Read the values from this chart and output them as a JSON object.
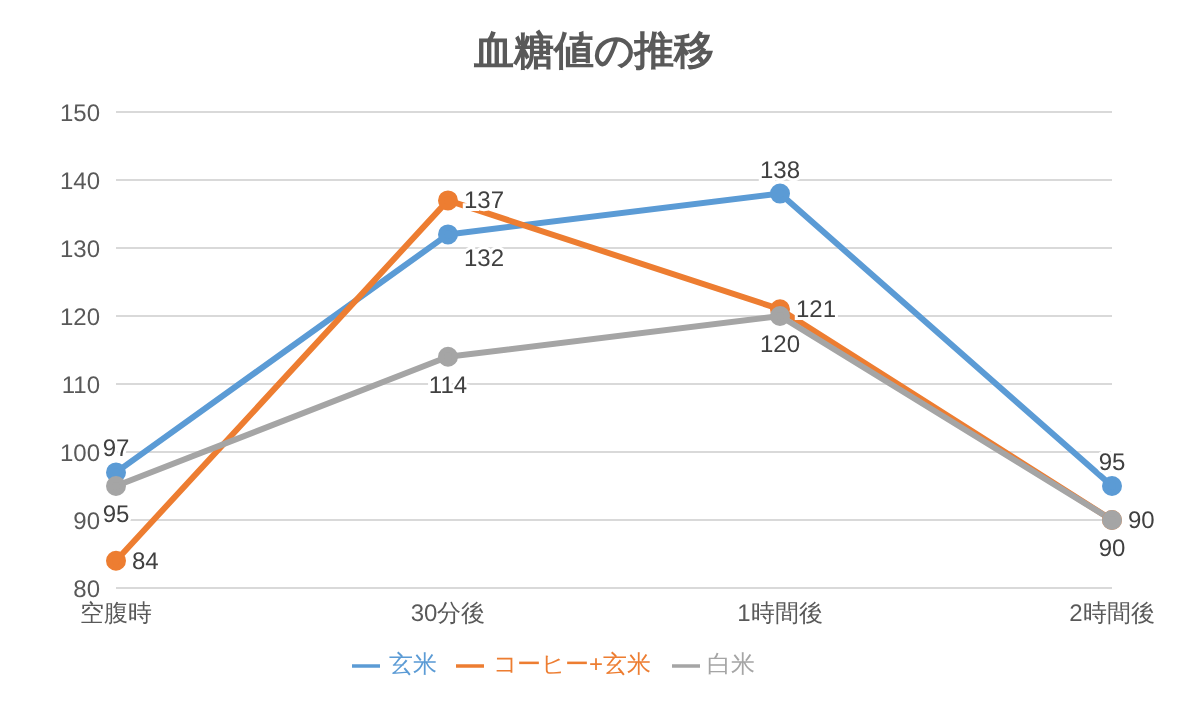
{
  "chart_data": {
    "type": "line",
    "title": "血糖値の推移",
    "categories": [
      "空腹時",
      "30分後",
      "1時間後",
      "2時間後"
    ],
    "series": [
      {
        "name": "玄米",
        "color": "#5b9bd5",
        "values": [
          97,
          132,
          138,
          95
        ]
      },
      {
        "name": "コーヒー+玄米",
        "color": "#ed7d31",
        "values": [
          84,
          137,
          121,
          90
        ]
      },
      {
        "name": "白米",
        "color": "#a5a5a5",
        "values": [
          95,
          114,
          120,
          90
        ]
      }
    ],
    "ylim": [
      80,
      150
    ],
    "yticks": [
      80,
      90,
      100,
      110,
      120,
      130,
      140,
      150
    ],
    "grid": "y",
    "legend": "bottom",
    "marker": "circle",
    "line_style": "solid",
    "data_labels": true
  }
}
